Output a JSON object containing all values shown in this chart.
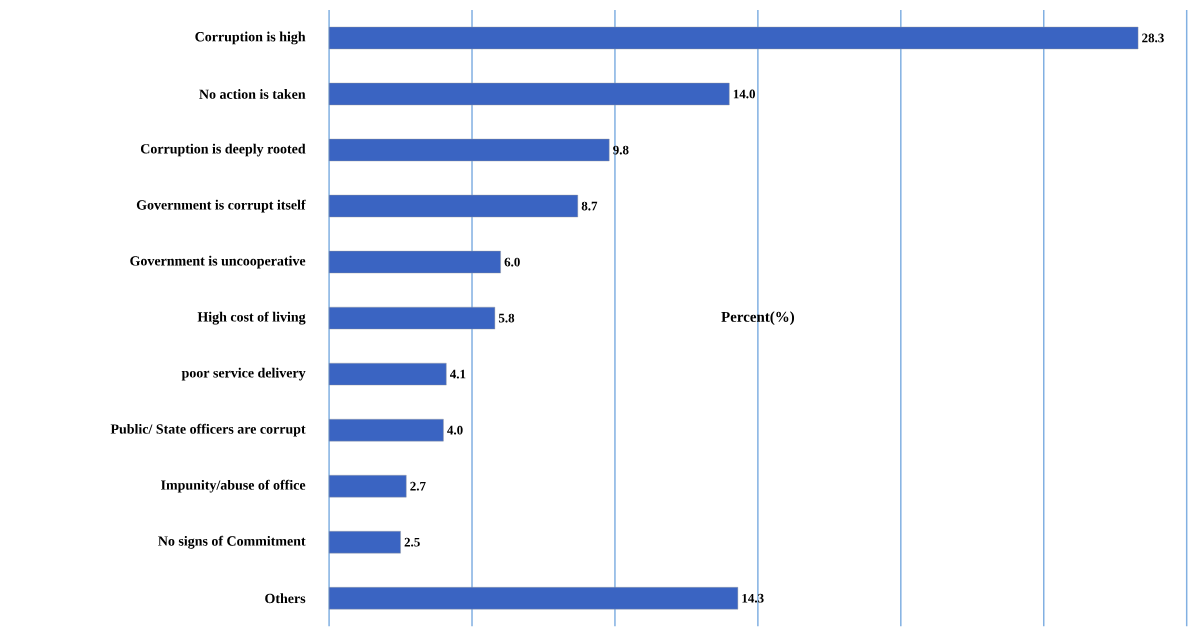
{
  "chart_data": {
    "type": "bar",
    "orientation": "horizontal",
    "xlabel": "Percent(%)",
    "categories": [
      "Corruption is high",
      "No action is taken",
      "Corruption is deeply rooted",
      "Government is corrupt itself",
      "Government is uncooperative",
      "High cost of living",
      "poor service delivery",
      "Public/ State officers are corrupt",
      "Impunity/abuse of office",
      "No signs of Commitment",
      "Others"
    ],
    "values": [
      28.3,
      14.0,
      9.8,
      8.7,
      6.0,
      5.8,
      4.1,
      4.0,
      2.7,
      2.5,
      14.3
    ],
    "value_labels": [
      "28.3",
      "14.0",
      "9.8",
      "8.7",
      "6.0",
      "5.8",
      "4.1",
      "4.0",
      "2.7",
      "2.5",
      "14.3"
    ],
    "color": "#3a64c2",
    "xlim": [
      0,
      30
    ],
    "xticks": [
      {
        "value": 0,
        "label": null
      },
      {
        "value": 5,
        "label": null
      },
      {
        "value": 10,
        "label": null
      },
      {
        "value": 15,
        "label": null
      },
      {
        "value": 20,
        "label": null
      },
      {
        "value": 25,
        "label": null
      },
      {
        "value": 30,
        "label": null
      }
    ],
    "grid": "x",
    "tick_labels": "y"
  }
}
